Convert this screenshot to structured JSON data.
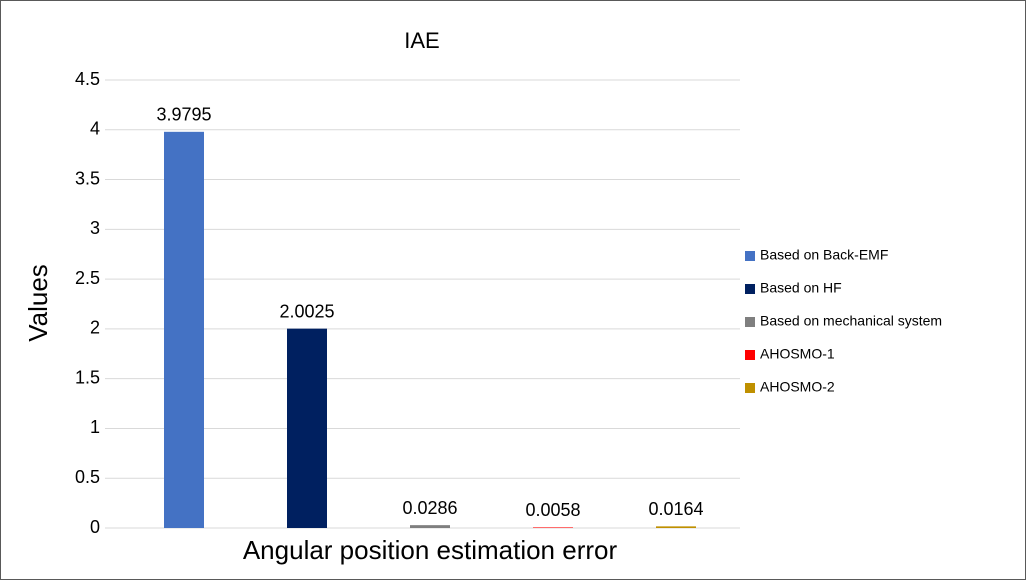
{
  "chart_data": {
    "type": "bar",
    "title": "IAE",
    "categories": [
      "Angular position estimation error"
    ],
    "ylabel": "Values",
    "series": [
      {
        "name": "Based on Back-EMF",
        "color": "#4472c4",
        "values": [
          3.9795
        ]
      },
      {
        "name": "Based on HF",
        "color": "#002060",
        "values": [
          2.0025
        ]
      },
      {
        "name": "Based on mechanical system",
        "color": "#7f7f7f",
        "values": [
          0.0286
        ]
      },
      {
        "name": "AHOSMO-1",
        "color": "#ff0000",
        "values": [
          0.0058
        ]
      },
      {
        "name": "AHOSMO-2",
        "color": "#bf9000",
        "values": [
          0.0164
        ]
      }
    ],
    "ylim": [
      0,
      4.5
    ],
    "yticks": [
      0,
      0.5,
      1,
      1.5,
      2,
      2.5,
      3,
      3.5,
      4,
      4.5
    ],
    "grid": true,
    "legend": "right"
  }
}
